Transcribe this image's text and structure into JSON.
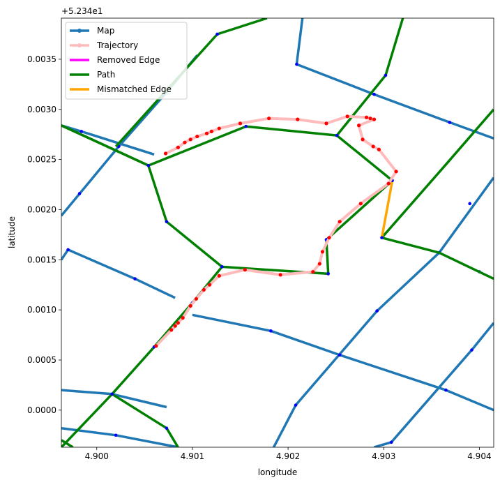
{
  "chart_data": {
    "type": "line",
    "title": "",
    "xlabel": "longitude",
    "ylabel": "latitude",
    "y_offset_label": "+5.234e1",
    "y_offset": 52.34,
    "xlim": [
      4.89963,
      4.90415
    ],
    "ylim": [
      -0.00037,
      0.00391
    ],
    "x_ticks": [
      4.9,
      4.901,
      4.902,
      4.903,
      4.904
    ],
    "x_tick_labels": [
      "4.900",
      "4.901",
      "4.902",
      "4.903",
      "4.904"
    ],
    "y_ticks": [
      0.0,
      0.0005,
      0.001,
      0.0015,
      0.002,
      0.0025,
      0.003,
      0.0035
    ],
    "y_tick_labels": [
      "0.0000",
      "0.0005",
      "0.0010",
      "0.0015",
      "0.0020",
      "0.0025",
      "0.0030",
      "0.0035"
    ],
    "grid": false,
    "legend_position": "top-left",
    "legend": [
      {
        "label": "Map",
        "color": "#1f77b4",
        "marker": true
      },
      {
        "label": "Trajectory",
        "color": "#ffbbbb",
        "marker": true
      },
      {
        "label": "Removed Edge",
        "color": "#ff00ff",
        "marker": false
      },
      {
        "label": "Path",
        "color": "#008000",
        "marker": false
      },
      {
        "label": "Mismatched Edge",
        "color": "#ffa500",
        "marker": false
      }
    ],
    "map_edges": [
      [
        [
          4.89963,
          0.00194
        ],
        [
          4.90023,
          0.00263
        ],
        [
          4.90073,
          0.00317
        ],
        [
          4.90105,
          0.00354
        ]
      ],
      [
        [
          4.89963,
          0.0015
        ],
        [
          4.8997,
          0.0016
        ],
        [
          4.9004,
          0.00131
        ],
        [
          4.90082,
          0.00112
        ]
      ],
      [
        [
          4.901,
          0.00095
        ],
        [
          4.90182,
          0.00079
        ],
        [
          4.90254,
          0.00055
        ],
        [
          4.90365,
          0.0002
        ],
        [
          4.90415,
          0.0
        ]
      ],
      [
        [
          4.89963,
          0.0002
        ],
        [
          4.90016,
          0.00016
        ],
        [
          4.90073,
          3e-05
        ]
      ],
      [
        [
          4.89963,
          -0.00018
        ],
        [
          4.9002,
          -0.00025
        ],
        [
          4.90085,
          -0.00037
        ]
      ],
      [
        [
          4.90185,
          -0.00037
        ],
        [
          4.90208,
          5e-05
        ],
        [
          4.90293,
          0.00099
        ],
        [
          4.90358,
          0.00157
        ],
        [
          4.90415,
          0.00232
        ]
      ],
      [
        [
          4.9029,
          -0.00037
        ],
        [
          4.90308,
          -0.00032
        ],
        [
          4.90392,
          0.0006
        ],
        [
          4.90415,
          0.00087
        ]
      ],
      [
        [
          4.90215,
          0.00391
        ],
        [
          4.90209,
          0.00345
        ],
        [
          4.9029,
          0.00315
        ],
        [
          4.90369,
          0.00287
        ],
        [
          4.90415,
          0.00271
        ]
      ],
      [
        [
          4.89963,
          0.00284
        ],
        [
          4.89984,
          0.00278
        ],
        [
          4.9006,
          0.00255
        ]
      ]
    ],
    "map_nodes": [
      [
        4.89984,
        0.00278
      ],
      [
        4.8997,
        0.0016
      ],
      [
        4.89982,
        0.00216
      ],
      [
        4.90023,
        0.00263
      ],
      [
        4.9004,
        0.00131
      ],
      [
        4.9002,
        -0.00025
      ],
      [
        4.90182,
        0.00079
      ],
      [
        4.90208,
        5e-05
      ],
      [
        4.90254,
        0.00055
      ],
      [
        4.90293,
        0.00099
      ],
      [
        4.90358,
        0.00157
      ],
      [
        4.90392,
        0.0006
      ],
      [
        4.90308,
        -0.00032
      ],
      [
        4.90209,
        0.00345
      ],
      [
        4.9029,
        0.00315
      ],
      [
        4.90369,
        0.00287
      ],
      [
        4.9039,
        0.00206
      ],
      [
        4.904,
        0.00138
      ],
      [
        4.90365,
        0.0002
      ],
      [
        4.90126,
        0.00375
      ]
    ],
    "path_edges": [
      [
        [
          4.89963,
          0.00284
        ],
        [
          4.90054,
          0.00244
        ],
        [
          4.90073,
          0.00188
        ],
        [
          4.90131,
          0.00143
        ],
        [
          4.90242,
          0.00136
        ],
        [
          4.9024,
          0.0017
        ],
        [
          4.90309,
          0.00229
        ],
        [
          4.90251,
          0.00274
        ],
        [
          4.90156,
          0.00283
        ],
        [
          4.90054,
          0.00244
        ]
      ],
      [
        [
          4.89963,
          0.00284
        ],
        [
          4.90054,
          0.00244
        ]
      ],
      [
        [
          4.90131,
          0.00143
        ],
        [
          4.901,
          0.00107
        ],
        [
          4.9006,
          0.00063
        ],
        [
          4.90016,
          0.00016
        ],
        [
          4.89963,
          -0.00037
        ]
      ],
      [
        [
          4.90016,
          0.00016
        ],
        [
          4.90073,
          -0.00018
        ],
        [
          4.90085,
          -0.00037
        ]
      ],
      [
        [
          4.90251,
          0.00274
        ],
        [
          4.90302,
          0.00334
        ],
        [
          4.9032,
          0.00391
        ]
      ],
      [
        [
          4.89963,
          -0.0003
        ],
        [
          4.89975,
          -0.00037
        ]
      ],
      [
        [
          4.90298,
          0.00172
        ],
        [
          4.90358,
          0.00157
        ],
        [
          4.90415,
          0.00131
        ]
      ],
      [
        [
          4.90298,
          0.00172
        ],
        [
          4.90365,
          0.00245
        ],
        [
          4.90415,
          0.003
        ]
      ],
      [
        [
          4.9002,
          0.00263
        ],
        [
          4.90126,
          0.00375
        ],
        [
          4.90178,
          0.00391
        ]
      ]
    ],
    "mismatched_edges": [
      [
        [
          4.90298,
          0.00172
        ],
        [
          4.90309,
          0.00229
        ]
      ]
    ],
    "path_nodes": [
      [
        4.90054,
        0.00244
      ],
      [
        4.90073,
        0.00188
      ],
      [
        4.90131,
        0.00143
      ],
      [
        4.90242,
        0.00136
      ],
      [
        4.9024,
        0.0017
      ],
      [
        4.90309,
        0.00229
      ],
      [
        4.90251,
        0.00274
      ],
      [
        4.90156,
        0.00283
      ],
      [
        4.90298,
        0.00172
      ],
      [
        4.901,
        0.00107
      ],
      [
        4.9006,
        0.00063
      ],
      [
        4.90016,
        0.00016
      ],
      [
        4.90073,
        -0.00018
      ],
      [
        4.90302,
        0.00334
      ],
      [
        4.9008,
        0.00082
      ],
      [
        4.90126,
        0.00375
      ]
    ],
    "trajectory": [
      [
        4.90072,
        0.00256
      ],
      [
        4.90085,
        0.00262
      ],
      [
        4.90092,
        0.00267
      ],
      [
        4.90098,
        0.0027
      ],
      [
        4.90105,
        0.00273
      ],
      [
        4.90115,
        0.00276
      ],
      [
        4.9012,
        0.00278
      ],
      [
        4.90128,
        0.00281
      ],
      [
        4.9015,
        0.00286
      ],
      [
        4.9018,
        0.00291
      ],
      [
        4.9021,
        0.0029
      ],
      [
        4.9024,
        0.00286
      ],
      [
        4.90262,
        0.00293
      ],
      [
        4.90282,
        0.00292
      ],
      [
        4.90286,
        0.00291
      ],
      [
        4.9029,
        0.0029
      ],
      [
        4.90274,
        0.00284
      ],
      [
        4.90278,
        0.0027
      ],
      [
        4.90289,
        0.00263
      ],
      [
        4.90295,
        0.0026
      ],
      [
        4.90313,
        0.00238
      ],
      [
        4.90305,
        0.00226
      ],
      [
        4.90276,
        0.00206
      ],
      [
        4.90254,
        0.00188
      ],
      [
        4.90243,
        0.00172
      ],
      [
        4.90236,
        0.00158
      ],
      [
        4.90233,
        0.00146
      ],
      [
        4.90226,
        0.00138
      ],
      [
        4.90192,
        0.00135
      ],
      [
        4.90155,
        0.0014
      ],
      [
        4.90128,
        0.00134
      ],
      [
        4.90118,
        0.00125
      ],
      [
        4.90112,
        0.0012
      ],
      [
        4.90104,
        0.00111
      ],
      [
        4.90098,
        0.00104
      ],
      [
        4.9009,
        0.00092
      ],
      [
        4.90085,
        0.00087
      ],
      [
        4.90082,
        0.00084
      ],
      [
        4.90078,
        0.0008
      ],
      [
        4.90062,
        0.00064
      ]
    ]
  }
}
